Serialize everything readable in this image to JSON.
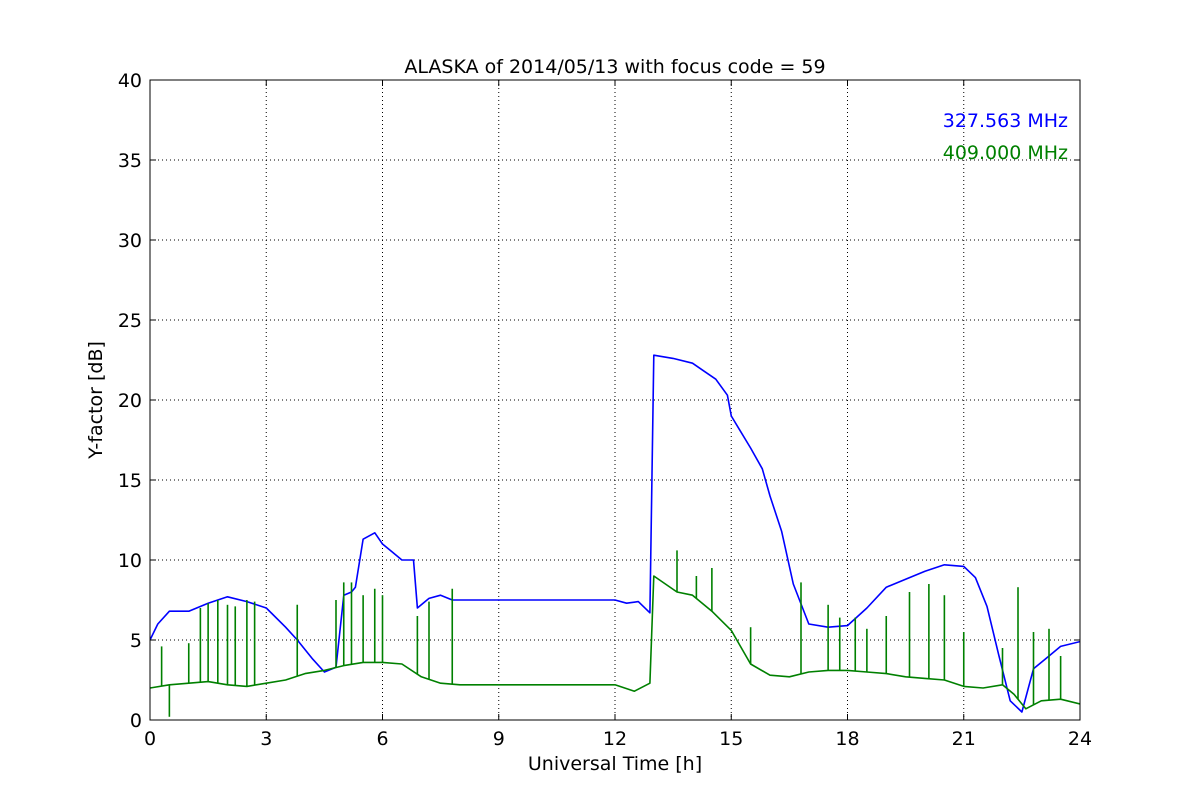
{
  "chart_data": {
    "type": "line",
    "title": "ALASKA of 2014/05/13 with focus code = 59",
    "xlabel": "Universal Time [h]",
    "ylabel": "Y-factor [dB]",
    "xlim": [
      0,
      24
    ],
    "ylim": [
      0,
      40
    ],
    "xticks": [
      0,
      3,
      6,
      9,
      12,
      15,
      18,
      21,
      24
    ],
    "yticks": [
      0,
      5,
      10,
      15,
      20,
      25,
      30,
      35,
      40
    ],
    "grid": true,
    "legend_position": "top-right",
    "series": [
      {
        "name": "327.563 MHz",
        "color": "#0000ff",
        "x": [
          0,
          0.2,
          0.5,
          1,
          1.5,
          2,
          2.5,
          3,
          3.5,
          3.8,
          4.2,
          4.5,
          4.8,
          5.0,
          5.2,
          5.3,
          5.5,
          5.8,
          6.0,
          6.2,
          6.5,
          6.8,
          6.9,
          7.0,
          7.2,
          7.5,
          7.8,
          8.0,
          12.0,
          12.3,
          12.6,
          12.9,
          13.0,
          13.5,
          14.0,
          14.3,
          14.6,
          14.9,
          15.0,
          15.2,
          15.5,
          15.8,
          16.0,
          16.3,
          16.6,
          17.0,
          17.5,
          18.0,
          18.5,
          19.0,
          19.5,
          20.0,
          20.5,
          21.0,
          21.3,
          21.6,
          21.9,
          22.2,
          22.5,
          22.8,
          23.1,
          23.5,
          24
        ],
        "y": [
          5.0,
          6.0,
          6.8,
          6.8,
          7.3,
          7.7,
          7.4,
          7.0,
          5.8,
          5.0,
          3.8,
          3.0,
          3.3,
          7.8,
          8.0,
          8.3,
          11.3,
          11.7,
          11.0,
          10.6,
          10.0,
          10.0,
          7.0,
          7.2,
          7.6,
          7.8,
          7.5,
          7.5,
          7.5,
          7.3,
          7.4,
          6.7,
          22.8,
          22.6,
          22.3,
          21.8,
          21.3,
          20.3,
          19.0,
          18.2,
          17.0,
          15.7,
          14.0,
          11.8,
          8.5,
          6.0,
          5.8,
          5.9,
          7.0,
          8.3,
          8.8,
          9.3,
          9.7,
          9.6,
          8.9,
          7.1,
          4.1,
          1.2,
          0.5,
          3.2,
          3.8,
          4.6,
          4.9
        ]
      },
      {
        "name": "409.000 MHz",
        "color": "#008000",
        "x": [
          0,
          0.5,
          1,
          1.5,
          2,
          2.5,
          3,
          3.5,
          4,
          4.5,
          5,
          5.5,
          6,
          6.5,
          7,
          7.5,
          8,
          12.0,
          12.5,
          12.9,
          13.0,
          13.3,
          13.6,
          14.0,
          14.5,
          15.0,
          15.5,
          16.0,
          16.5,
          17.0,
          17.5,
          18.0,
          18.5,
          19.0,
          19.5,
          20.0,
          20.5,
          21.0,
          21.5,
          22.0,
          22.3,
          22.6,
          23.0,
          23.5,
          24
        ],
        "y": [
          2.0,
          2.2,
          2.3,
          2.4,
          2.2,
          2.1,
          2.3,
          2.5,
          2.9,
          3.1,
          3.4,
          3.6,
          3.6,
          3.5,
          2.7,
          2.3,
          2.2,
          2.2,
          1.8,
          2.3,
          9.0,
          8.5,
          8.0,
          7.8,
          6.8,
          5.6,
          3.5,
          2.8,
          2.7,
          3.0,
          3.1,
          3.1,
          3.0,
          2.9,
          2.7,
          2.6,
          2.5,
          2.1,
          2.0,
          2.2,
          1.6,
          0.7,
          1.2,
          1.3,
          1.0
        ],
        "spikes": [
          {
            "x": 0.3,
            "y": 4.6
          },
          {
            "x": 0.5,
            "y": 0.2
          },
          {
            "x": 1.0,
            "y": 4.8
          },
          {
            "x": 1.3,
            "y": 7.0
          },
          {
            "x": 1.5,
            "y": 7.3
          },
          {
            "x": 1.75,
            "y": 7.5
          },
          {
            "x": 2.0,
            "y": 7.2
          },
          {
            "x": 2.2,
            "y": 7.1
          },
          {
            "x": 2.5,
            "y": 7.5
          },
          {
            "x": 2.7,
            "y": 7.4
          },
          {
            "x": 3.8,
            "y": 7.2
          },
          {
            "x": 4.8,
            "y": 7.5
          },
          {
            "x": 5.0,
            "y": 8.6
          },
          {
            "x": 5.2,
            "y": 8.6
          },
          {
            "x": 5.5,
            "y": 7.8
          },
          {
            "x": 5.8,
            "y": 8.2
          },
          {
            "x": 6.0,
            "y": 7.8
          },
          {
            "x": 6.9,
            "y": 6.5
          },
          {
            "x": 7.2,
            "y": 7.4
          },
          {
            "x": 7.8,
            "y": 8.2
          },
          {
            "x": 13.6,
            "y": 10.6
          },
          {
            "x": 14.1,
            "y": 9.0
          },
          {
            "x": 14.5,
            "y": 9.5
          },
          {
            "x": 15.5,
            "y": 5.8
          },
          {
            "x": 16.8,
            "y": 8.6
          },
          {
            "x": 17.5,
            "y": 7.2
          },
          {
            "x": 17.8,
            "y": 6.4
          },
          {
            "x": 18.2,
            "y": 6.4
          },
          {
            "x": 18.5,
            "y": 5.7
          },
          {
            "x": 19.0,
            "y": 6.5
          },
          {
            "x": 19.6,
            "y": 8.0
          },
          {
            "x": 20.1,
            "y": 8.5
          },
          {
            "x": 20.5,
            "y": 7.8
          },
          {
            "x": 21.0,
            "y": 5.5
          },
          {
            "x": 22.0,
            "y": 4.5
          },
          {
            "x": 22.4,
            "y": 8.3
          },
          {
            "x": 22.8,
            "y": 5.5
          },
          {
            "x": 23.2,
            "y": 5.7
          },
          {
            "x": 23.5,
            "y": 4.0
          }
        ]
      }
    ]
  }
}
